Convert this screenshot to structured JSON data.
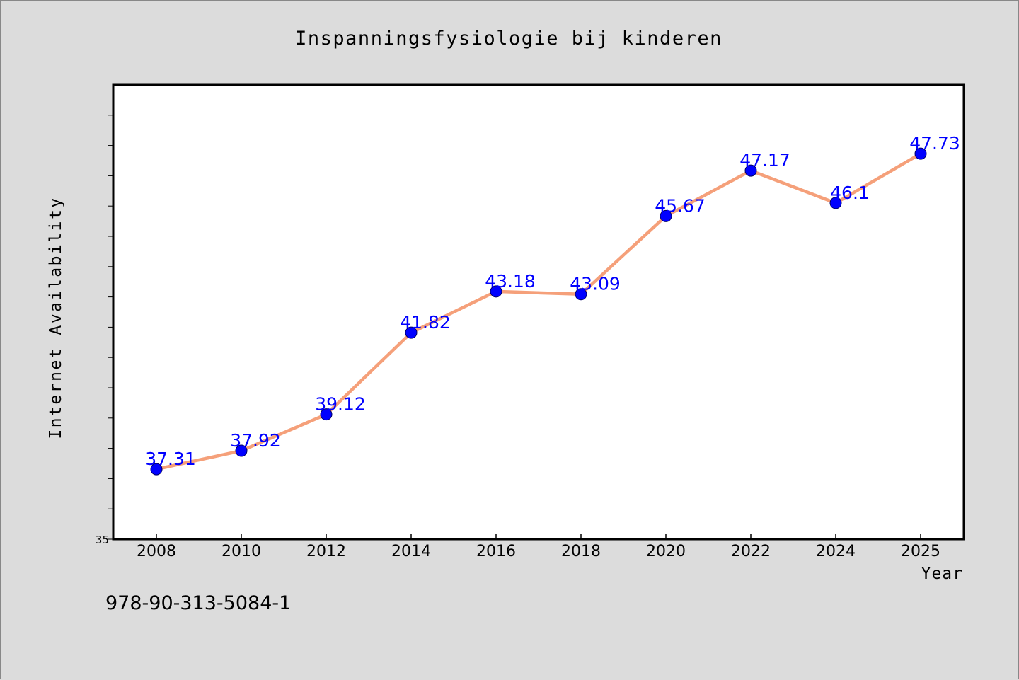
{
  "chart_data": {
    "type": "line",
    "title": "Inspanningsfysiologie bij kinderen",
    "xlabel": "Year",
    "ylabel": "Internet Availability",
    "categories": [
      "2008",
      "2010",
      "2012",
      "2014",
      "2016",
      "2018",
      "2020",
      "2022",
      "2024",
      "2025"
    ],
    "series": [
      {
        "values": [
          37.31,
          37.92,
          39.12,
          41.82,
          43.18,
          43.09,
          45.67,
          47.17,
          46.1,
          47.73
        ],
        "labels": [
          "37.31",
          "37.92",
          "39.12",
          "41.82",
          "43.18",
          "43.09",
          "45.67",
          "47.17",
          "46.1",
          "47.73"
        ],
        "line_color": "#f5a07a",
        "marker_color": "#0000ff"
      }
    ],
    "ylim": [
      35,
      50
    ],
    "y_tick_labels": [
      "35"
    ],
    "grid": false,
    "legend": "none",
    "plot_background": "#ffffff",
    "label_color": "#0000ff"
  },
  "footer": {
    "code": "978-90-313-5084-1"
  }
}
